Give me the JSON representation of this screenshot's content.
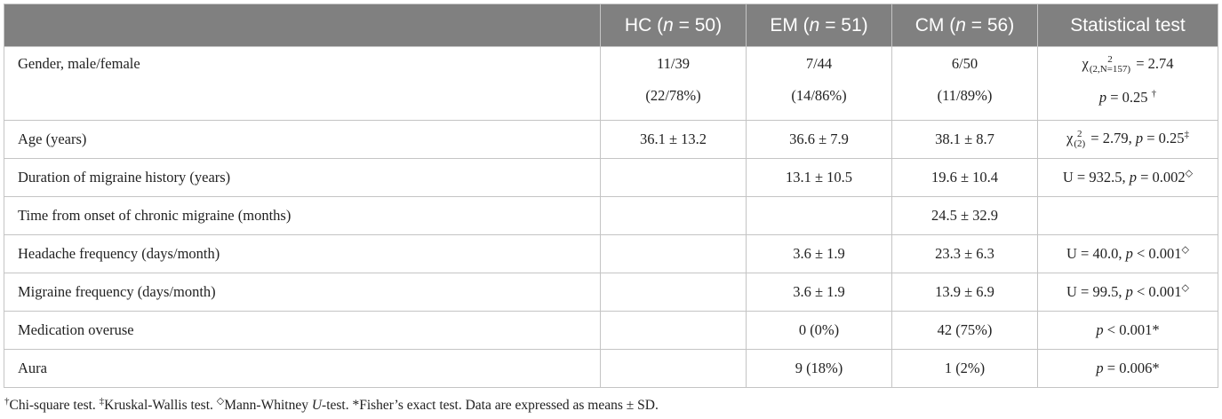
{
  "table": {
    "headers": {
      "c0": "",
      "hc": "HC (",
      "hc_n": "n",
      "hc_val": " = 50)",
      "em": "EM (",
      "em_n": "n",
      "em_val": " = 51)",
      "cm": "CM (",
      "cm_n": "n",
      "cm_val": " = 56)",
      "test": "Statistical test"
    },
    "rows": [
      {
        "label": "Gender, male/female",
        "hc": "11/39",
        "hc2": "(22/78%)",
        "em": "7/44",
        "em2": "(14/86%)",
        "cm": "6/50",
        "cm2": "(11/89%)",
        "test_chi": "χ",
        "test_sup": "2",
        "test_sub": "(2,N=157)",
        "test_rest": " = 2.74",
        "test_p": "p",
        "test_p_rest": " = 0.25 ",
        "test_mark": "†"
      },
      {
        "label": "Age (years)",
        "hc": "36.1 ± 13.2",
        "em": "36.6 ± 7.9",
        "cm": "38.1 ± 8.7",
        "test_chi": "χ",
        "test_sup": "2",
        "test_sub": "(2)",
        "test_rest": " = 2.79, ",
        "test_p": "p",
        "test_p_rest": " = 0.25",
        "test_mark": "‡"
      },
      {
        "label": "Duration of migraine history (years)",
        "hc": "",
        "em": "13.1 ± 10.5",
        "cm": "19.6 ± 10.4",
        "test_pre": "U = 932.5, ",
        "test_p": "p",
        "test_p_rest": " = 0.002",
        "test_mark": "◇"
      },
      {
        "label": "Time from onset of chronic migraine (months)",
        "hc": "",
        "em": "",
        "cm": "24.5 ± 32.9",
        "test": ""
      },
      {
        "label": "Headache frequency (days/month)",
        "hc": "",
        "em": "3.6 ± 1.9",
        "cm": "23.3 ± 6.3",
        "test_pre": "U = 40.0, ",
        "test_p": "p",
        "test_p_rest": " < 0.001",
        "test_mark": "◇"
      },
      {
        "label": "Migraine frequency (days/month)",
        "hc": "",
        "em": "3.6 ± 1.9",
        "cm": "13.9 ± 6.9",
        "test_pre": "U = 99.5, ",
        "test_p": "p",
        "test_p_rest": " < 0.001",
        "test_mark": "◇"
      },
      {
        "label": "Medication overuse",
        "hc": "",
        "em": "0 (0%)",
        "cm": "42 (75%)",
        "test_p": "p",
        "test_p_rest": " < 0.001*"
      },
      {
        "label": "Aura",
        "hc": "",
        "em": "9 (18%)",
        "cm": "1 (2%)",
        "test_p": "p",
        "test_p_rest": " = 0.006*"
      }
    ]
  },
  "footnote": {
    "m1": "†",
    "t1": "Chi-square test. ",
    "m2": "‡",
    "t2": "Kruskal-Wallis test. ",
    "m3": "◇",
    "t3": "Mann-Whitney ",
    "u": "U",
    "t4": "-test. *Fisher’s exact test. Data are expressed as means ± SD."
  }
}
